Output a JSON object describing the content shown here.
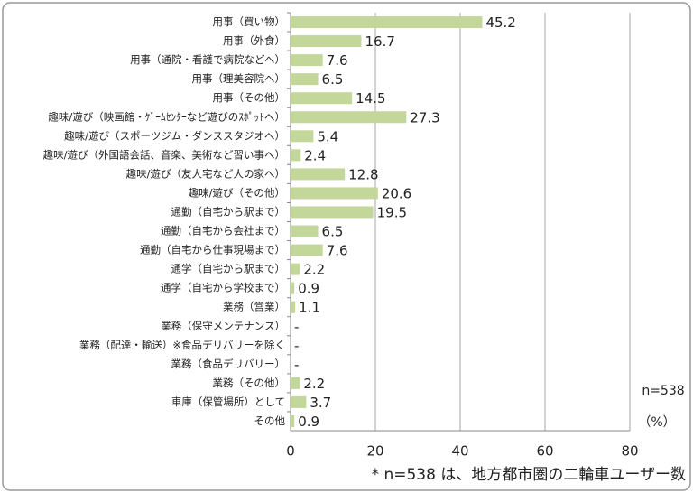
{
  "chart_data": {
    "type": "bar",
    "orientation": "horizontal",
    "categories": [
      "用事（買い物）",
      "用事（外食）",
      "用事（通院・看護で病院などへ）",
      "用事（理美容院へ）",
      "用事（その他）",
      "趣味/遊び（映画館・ｹﾞｰﾑｾﾝﾀｰなど遊びのｽﾎﾟｯﾄへ）",
      "趣味/遊び（スポーツジム・ダンススタジオへ）",
      "趣味/遊び（外国語会話、音楽、美術など習い事へ）",
      "趣味/遊び（友人宅など人の家へ）",
      "趣味/遊び（その他）",
      "通勤（自宅から駅まで）",
      "通勤（自宅から会社まで）",
      "通勤（自宅から仕事現場まで）",
      "通学（自宅から駅まで）",
      "通学（自宅から学校まで）",
      "業務（営業）",
      "業務（保守メンテナンス）",
      "業務（配達・輸送）※食品デリバリーを除く",
      "業務（食品デリバリー）",
      "業務（その他）",
      "車庫（保管場所）として",
      "その他"
    ],
    "values": [
      45.2,
      16.7,
      7.6,
      6.5,
      14.5,
      27.3,
      5.4,
      2.4,
      12.8,
      20.6,
      19.5,
      6.5,
      7.6,
      2.2,
      0.9,
      1.1,
      0,
      0,
      0,
      2.2,
      3.7,
      0.9
    ],
    "value_labels": [
      "45.2",
      "16.7",
      "7.6",
      "6.5",
      "14.5",
      "27.3",
      "5.4",
      "2.4",
      "12.8",
      "20.6",
      "19.5",
      "6.5",
      "7.6",
      "2.2",
      "0.9",
      "1.1",
      "-",
      "-",
      "-",
      "2.2",
      "3.7",
      "0.9"
    ],
    "color": "#c4d79b",
    "xlim": [
      0,
      80
    ],
    "xticks": [
      0,
      20,
      40,
      60,
      80
    ],
    "grid": true,
    "annotations": [
      "n=538",
      "（%）"
    ],
    "footnote": "* n=538 は、地方都市圏の二輪車ユーザー数"
  }
}
